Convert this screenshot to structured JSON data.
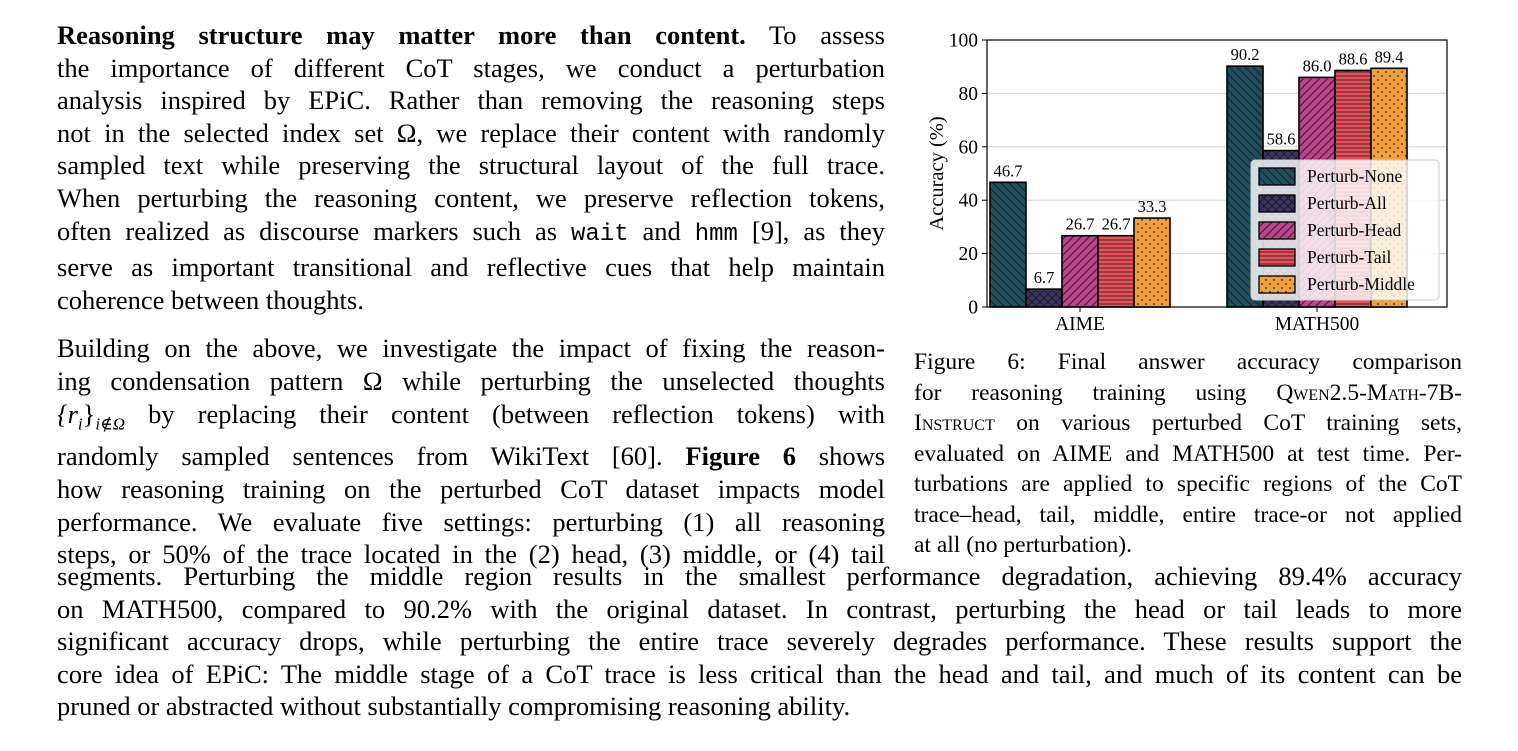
{
  "paragraph1": {
    "heading": "Reasoning structure may matter more than content.",
    "lines": [
      "To assess",
      "the importance of different CoT stages, we conduct a perturbation",
      "analysis inspired by EPiC. Rather than removing the reasoning steps",
      "not in the selected index set Ω, we replace their content with randomly",
      "sampled text while preserving the structural layout of the full trace.",
      "When perturbing the reasoning content, we preserve reflection tokens,"
    ],
    "line7_pre": "often realized as discourse markers such as ",
    "token_wait": "wait",
    "line7_and": " and ",
    "token_hmm": "hmm",
    "line7_post": " [9], as they",
    "lines_end": [
      "serve as important transitional and reflective cues that help maintain",
      "coherence between thoughts."
    ]
  },
  "paragraph2": {
    "line1": "Building on the above, we investigate the impact of fixing the reason-",
    "line2": "ing condensation pattern Ω while perturbing the unselected thoughts",
    "line3_math": "{r",
    "line3_sub_i": "i",
    "line3_brace": "}",
    "line3_sub": "i∉Ω",
    "line3_text": " by replacing their content (between reflection tokens) with",
    "line4_pre": "randomly sampled sentences from WikiText [60].",
    "line4_bold": "Figure 6",
    "line4_post": "shows",
    "line5": "how reasoning training on the perturbed CoT dataset impacts model",
    "line6": "performance. We evaluate five settings: perturbing (1) all reasoning",
    "line7": "steps, or 50% of the trace located in the (2) head, (3) middle, or (4) tail"
  },
  "full_width_lines": [
    "segments. Perturbing the middle region results in the smallest performance degradation, achieving 89.4% accuracy",
    "on MATH500, compared to 90.2% with the original dataset. In contrast, perturbing the head or tail leads to more",
    "significant accuracy drops, while perturbing the entire trace severely degrades performance. These results support the",
    "core idea of EPiC: The middle stage of a CoT trace is less critical than the head and tail, and much of its content can be"
  ],
  "full_width_last": "pruned or abstracted without substantially compromising reasoning ability.",
  "caption": {
    "label": "Figure 6:",
    "l1": "Final answer accuracy comparison",
    "l2_pre": "for reasoning training using ",
    "model_name": "Qwen2.5-Math-7B-",
    "model_name2": "Instruct",
    "l3_post": " on various perturbed CoT training sets,",
    "l4": "evaluated on AIME and MATH500 at test time. Per-",
    "l5": "turbations are applied to specific regions of the CoT",
    "l6": "trace–head, tail, middle, entire trace-or not applied",
    "l7": "at all (no perturbation)."
  },
  "chart_data": {
    "type": "bar",
    "categories": [
      "AIME",
      "MATH500"
    ],
    "ylabel": "Accuracy (%)",
    "xlabel": "",
    "ylim": [
      0,
      100
    ],
    "yticks": [
      0,
      20,
      40,
      60,
      80,
      100
    ],
    "grid": true,
    "legend_position": "lower-right",
    "series": [
      {
        "name": "Perturb-None",
        "values": [
          46.7,
          90.2
        ],
        "color": "#1f4e5f",
        "pattern": "diag-back"
      },
      {
        "name": "Perturb-All",
        "values": [
          6.7,
          58.6
        ],
        "color": "#3d3466",
        "pattern": "cross"
      },
      {
        "name": "Perturb-Head",
        "values": [
          26.7,
          86.0
        ],
        "color": "#b8448a",
        "pattern": "diag-forward"
      },
      {
        "name": "Perturb-Tail",
        "values": [
          26.7,
          88.6
        ],
        "color": "#e8505b",
        "pattern": "horizontal"
      },
      {
        "name": "Perturb-Middle",
        "values": [
          33.3,
          89.4
        ],
        "color": "#f2a03d",
        "pattern": "dots"
      }
    ],
    "data_labels": [
      [
        "46.7",
        "6.7",
        "26.7",
        "26.7",
        "33.3"
      ],
      [
        "90.2",
        "58.6",
        "86.0",
        "88.6",
        "89.4"
      ]
    ]
  }
}
